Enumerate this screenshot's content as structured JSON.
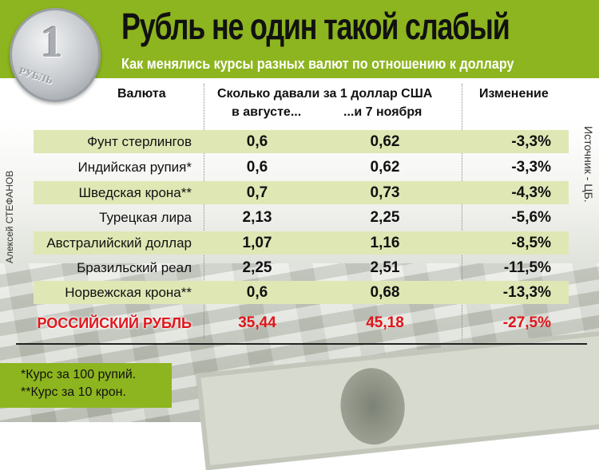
{
  "header": {
    "title": "Рубль не один такой слабый",
    "subtitle": "Как менялись курсы разных валют по отношению к доллару",
    "coin_text": "1",
    "coin_label": "РУБЛЬ",
    "brand_color": "#8db51f"
  },
  "credits": {
    "author": "Алексей СТЕФАНОВ",
    "source": "Источник - ЦБ."
  },
  "chart_data": {
    "type": "table",
    "title": "Рубль не один такой слабый",
    "subtitle": "Как менялись курсы разных валют по отношению к доллару",
    "columns": {
      "currency": "Валюта",
      "given_group": "Сколько давали за 1 доллар США",
      "august": "в августе...",
      "november": "...и 7 ноября",
      "change": "Изменение"
    },
    "rows": [
      {
        "currency": "Фунт стерлингов",
        "august": "0,6",
        "november": "0,62",
        "change": "-3,3%"
      },
      {
        "currency": "Индийская рупия*",
        "august": "0,6",
        "november": "0,62",
        "change": "-3,3%"
      },
      {
        "currency": "Шведская крона**",
        "august": "0,7",
        "november": "0,73",
        "change": "-4,3%"
      },
      {
        "currency": "Турецкая лира",
        "august": "2,13",
        "november": "2,25",
        "change": "-5,6%"
      },
      {
        "currency": "Австралийский доллар",
        "august": "1,07",
        "november": "1,16",
        "change": "-8,5%"
      },
      {
        "currency": "Бразильский реал",
        "august": "2,25",
        "november": "2,51",
        "change": "-11,5%"
      },
      {
        "currency": "Норвежская крона**",
        "august": "0,6",
        "november": "0,68",
        "change": "-13,3%"
      },
      {
        "currency": "РОССИЙСКИЙ РУБЛЬ",
        "august": "35,44",
        "november": "45,18",
        "change": "-27,5%"
      }
    ],
    "highlight_color": "#e0161c",
    "stripe_color": "#dfe7b4"
  },
  "footnotes": [
    "*Курс за 100 рупий.",
    "**Курс за 10 крон."
  ]
}
